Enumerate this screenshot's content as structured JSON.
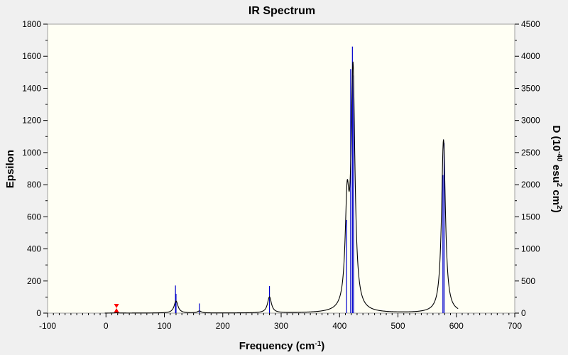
{
  "chart_data": {
    "type": "line",
    "title": "IR Spectrum",
    "xlabel": {
      "text": "Frequency (cm",
      "sup": "-1",
      "close": ")"
    },
    "ylabel_left": "Epsilon",
    "ylabel_right": {
      "t1": "D (10",
      "s1": "-40",
      "t2": " esu",
      "s2": "2",
      "t3": " cm",
      "s3": "2",
      "t4": ")"
    },
    "xlim": [
      -100,
      700
    ],
    "ylim_left": [
      0,
      1800
    ],
    "ylim_right": [
      0,
      4500
    ],
    "x_ticks": [
      -100,
      0,
      100,
      200,
      300,
      400,
      500,
      600,
      700
    ],
    "y_left_ticks": [
      0,
      200,
      400,
      600,
      800,
      1000,
      1200,
      1400,
      1600,
      1800
    ],
    "y_right_ticks": [
      0,
      500,
      1000,
      1500,
      2000,
      2500,
      3000,
      3500,
      4000,
      4500
    ],
    "grid": false,
    "peak_halfwidth": 4,
    "spectrum_range": [
      -2,
      603
    ],
    "peaks": [
      {
        "x": 18,
        "epsilon": 2
      },
      {
        "x": 120,
        "epsilon": 75
      },
      {
        "x": 160,
        "epsilon": 12
      },
      {
        "x": 280,
        "epsilon": 100
      },
      {
        "x": 413,
        "epsilon": 620
      },
      {
        "x": 423,
        "epsilon": 1480
      },
      {
        "x": 578,
        "epsilon": 1080
      }
    ],
    "sticks": [
      {
        "x": 119,
        "intensity": 430
      },
      {
        "x": 120,
        "intensity": 300
      },
      {
        "x": 160,
        "intensity": 150
      },
      {
        "x": 280,
        "intensity": 420
      },
      {
        "x": 412,
        "intensity": 1450
      },
      {
        "x": 419,
        "intensity": 3800
      },
      {
        "x": 422,
        "intensity": 4150
      },
      {
        "x": 424,
        "intensity": 3700
      },
      {
        "x": 577,
        "intensity": 2150
      },
      {
        "x": 579,
        "intensity": 2650
      }
    ],
    "marker_x": 18,
    "colors": {
      "spectrum": "#000000",
      "sticks": "#0000cc",
      "marker": "#ff0000",
      "plot_background": "#fffff4",
      "outer_background": "#f0f0f0"
    }
  }
}
